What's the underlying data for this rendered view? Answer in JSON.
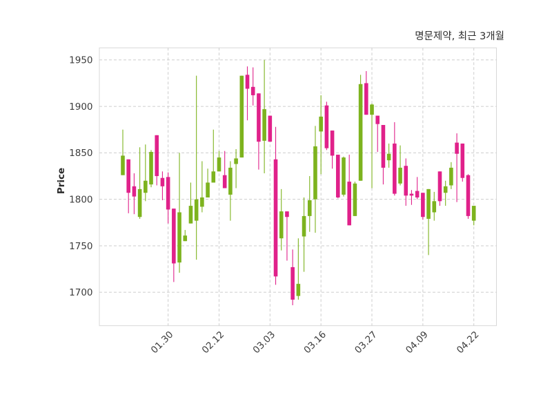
{
  "title": "명문제약, 최근 3개월",
  "ylabel": "Price",
  "chart_data": {
    "type": "candlestick",
    "title": "명문제약, 최근 3개월",
    "xlabel": "",
    "ylabel": "Price",
    "grid": true,
    "ylim": [
      1664,
      1963
    ],
    "y_ticks": [
      1700,
      1750,
      1800,
      1850,
      1900,
      1950
    ],
    "x_tick_labels": [
      "01.30",
      "02.12",
      "03.03",
      "03.16",
      "03.27",
      "04.09",
      "04.22"
    ],
    "x_tick_indices": [
      8,
      17,
      26,
      35,
      44,
      53,
      62
    ],
    "up_color": "#7db31e",
    "down_color": "#e0218a",
    "grid_color": "#cdcdcd",
    "border_color": "#d8d8d8",
    "tick_text_color": "#3c3c3c",
    "candles_ohlc": [
      [
        1826,
        1875,
        1826,
        1847
      ],
      [
        1843,
        1843,
        1785,
        1807
      ],
      [
        1814,
        1828,
        1784,
        1803
      ],
      [
        1781,
        1856,
        1779,
        1811
      ],
      [
        1807,
        1859,
        1798,
        1820
      ],
      [
        1816,
        1853,
        1813,
        1851
      ],
      [
        1869,
        1869,
        1815,
        1825
      ],
      [
        1823,
        1830,
        1799,
        1814
      ],
      [
        1824,
        1829,
        1774,
        1789
      ],
      [
        1790,
        1790,
        1711,
        1731
      ],
      [
        1732,
        1850,
        1721,
        1786
      ],
      [
        1755,
        1767,
        1755,
        1761
      ],
      [
        1774,
        1818,
        1774,
        1793
      ],
      [
        1777,
        1933,
        1735,
        1800
      ],
      [
        1792,
        1841,
        1786,
        1802
      ],
      [
        1802,
        1833,
        1802,
        1818
      ],
      [
        1818,
        1875,
        1818,
        1830
      ],
      [
        1830,
        1852,
        1830,
        1845
      ],
      [
        1826,
        1852,
        1812,
        1812
      ],
      [
        1805,
        1841,
        1777,
        1834
      ],
      [
        1838,
        1854,
        1812,
        1844
      ],
      [
        1845,
        1933,
        1845,
        1933
      ],
      [
        1934,
        1943,
        1885,
        1919
      ],
      [
        1921,
        1942,
        1901,
        1912
      ],
      [
        1914,
        1914,
        1832,
        1862
      ],
      [
        1863,
        1950,
        1828,
        1897
      ],
      [
        1890,
        1890,
        1862,
        1862
      ],
      [
        1843,
        1878,
        1708,
        1717
      ],
      [
        1758,
        1811,
        1745,
        1787
      ],
      [
        1787,
        1787,
        1734,
        1781
      ],
      [
        1727,
        1746,
        1686,
        1692
      ],
      [
        1696,
        1758,
        1692,
        1709
      ],
      [
        1760,
        1802,
        1722,
        1782
      ],
      [
        1782,
        1825,
        1765,
        1799
      ],
      [
        1800,
        1879,
        1764,
        1857
      ],
      [
        1873,
        1912,
        1827,
        1889
      ],
      [
        1901,
        1905,
        1853,
        1855
      ],
      [
        1874,
        1874,
        1833,
        1847
      ],
      [
        1848,
        1848,
        1801,
        1802
      ],
      [
        1805,
        1846,
        1803,
        1845
      ],
      [
        1819,
        1848,
        1772,
        1772
      ],
      [
        1782,
        1819,
        1782,
        1817
      ],
      [
        1820,
        1934,
        1820,
        1924
      ],
      [
        1925,
        1938,
        1891,
        1891
      ],
      [
        1891,
        1903,
        1812,
        1902
      ],
      [
        1890,
        1890,
        1851,
        1881
      ],
      [
        1880,
        1880,
        1816,
        1834
      ],
      [
        1842,
        1860,
        1834,
        1849
      ],
      [
        1860,
        1883,
        1804,
        1806
      ],
      [
        1817,
        1858,
        1815,
        1834
      ],
      [
        1836,
        1844,
        1793,
        1804
      ],
      [
        1806,
        1810,
        1794,
        1804
      ],
      [
        1809,
        1824,
        1800,
        1802
      ],
      [
        1807,
        1807,
        1778,
        1781
      ],
      [
        1779,
        1811,
        1740,
        1811
      ],
      [
        1786,
        1808,
        1777,
        1798
      ],
      [
        1830,
        1830,
        1793,
        1798
      ],
      [
        1807,
        1820,
        1793,
        1814
      ],
      [
        1815,
        1840,
        1811,
        1834
      ],
      [
        1861,
        1871,
        1797,
        1849
      ],
      [
        1860,
        1860,
        1819,
        1823
      ],
      [
        1826,
        1827,
        1779,
        1782
      ],
      [
        1777,
        1793,
        1772,
        1793
      ]
    ]
  }
}
